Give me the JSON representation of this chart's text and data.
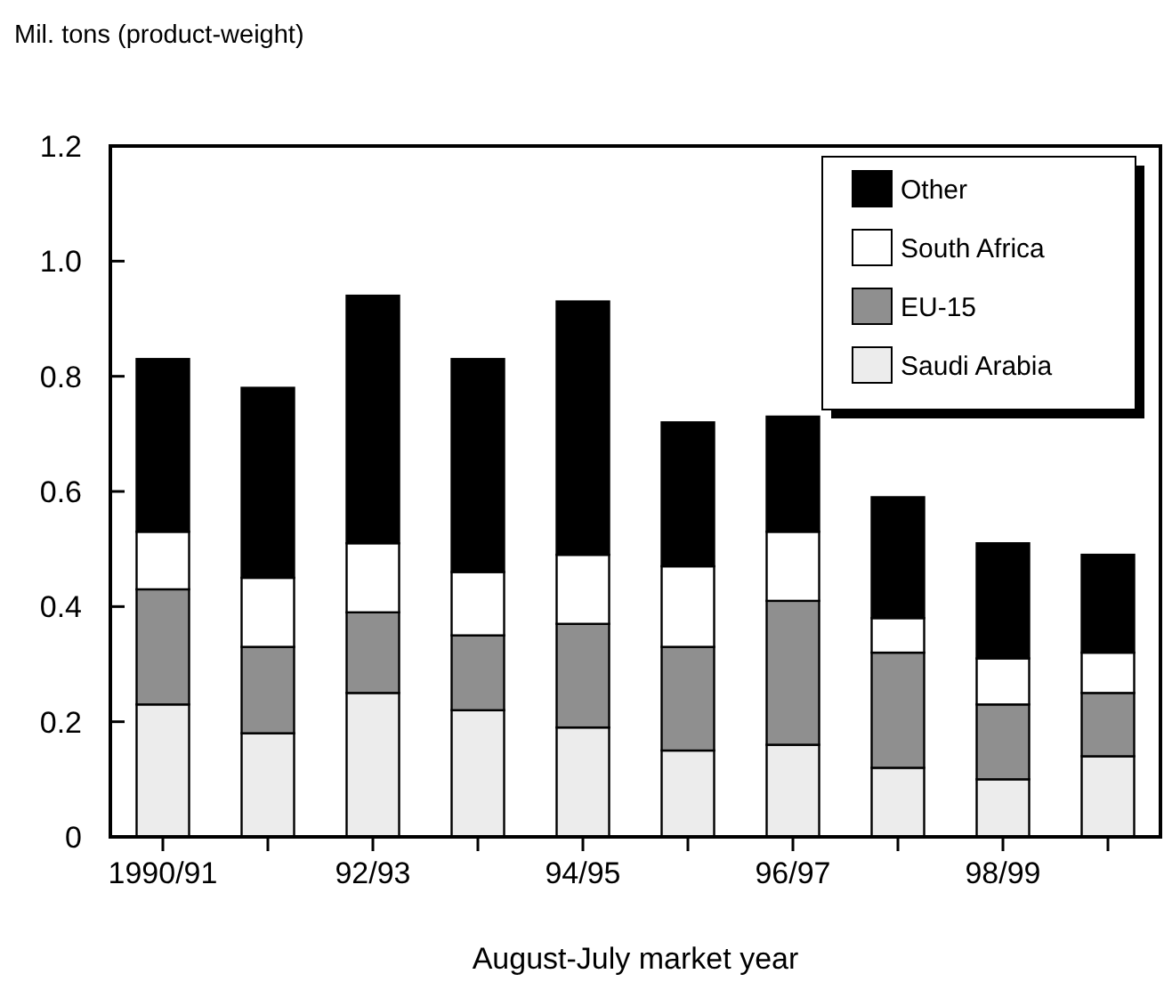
{
  "chart_data": {
    "type": "bar",
    "stacked": true,
    "ylabel": "Mil. tons (product-weight)",
    "xlabel": "August-July market year",
    "categories": [
      "1990/91",
      null,
      "92/93",
      null,
      "94/95",
      null,
      "96/97",
      null,
      "98/99",
      null
    ],
    "series": [
      {
        "name": "Saudi Arabia",
        "color": "#ececec",
        "values": [
          0.23,
          0.18,
          0.25,
          0.22,
          0.19,
          0.15,
          0.16,
          0.12,
          0.1,
          0.14
        ]
      },
      {
        "name": "EU-15",
        "color": "#8f8f8f",
        "values": [
          0.2,
          0.15,
          0.14,
          0.13,
          0.18,
          0.18,
          0.25,
          0.2,
          0.13,
          0.11
        ]
      },
      {
        "name": "South Africa",
        "color": "#ffffff",
        "values": [
          0.1,
          0.12,
          0.12,
          0.11,
          0.12,
          0.14,
          0.12,
          0.06,
          0.08,
          0.07
        ]
      },
      {
        "name": "Other",
        "color": "#000000",
        "values": [
          0.3,
          0.33,
          0.43,
          0.37,
          0.44,
          0.25,
          0.2,
          0.21,
          0.2,
          0.17
        ]
      }
    ],
    "ylim": [
      0,
      1.2
    ],
    "yticks": [
      0,
      {
        "value": 0.2,
        "label": "0.2"
      },
      {
        "value": 0.4,
        "label": "0.4"
      },
      {
        "value": 0.6,
        "label": "0.6"
      },
      {
        "value": 0.8,
        "label": "0.8"
      },
      {
        "value": 1,
        "label": "1.0"
      },
      {
        "value": 1.2,
        "label": "1.2"
      }
    ],
    "legend": "top right",
    "grid": false
  }
}
